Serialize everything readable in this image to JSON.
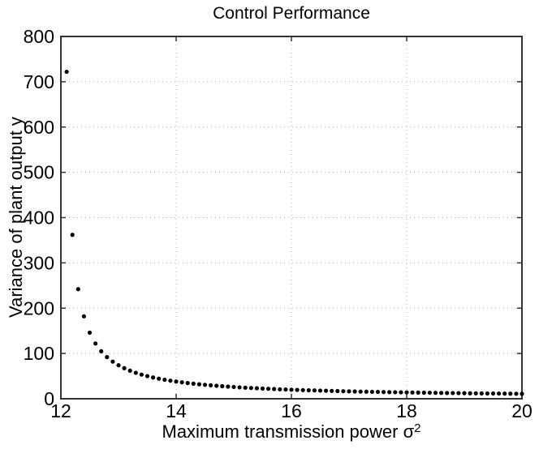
{
  "chart_data": {
    "type": "scatter",
    "title": "Control Performance",
    "xlabel_base": "Maximum transmission power σ",
    "xlabel_exponent": "2",
    "ylabel": "Variance of plant output y",
    "xlim": [
      12,
      20
    ],
    "ylim": [
      0,
      800
    ],
    "xticks": [
      12,
      14,
      16,
      18,
      20
    ],
    "yticks": [
      0,
      100,
      200,
      300,
      400,
      500,
      600,
      700,
      800
    ],
    "grid": true,
    "legend": "none",
    "marker": "dot",
    "marker_color": "#000000",
    "axis_color": "#333333",
    "grid_color": "#b0b0b0",
    "background": "#ffffff",
    "x": [
      12.1,
      12.2,
      12.3,
      12.4,
      12.5,
      12.6,
      12.7,
      12.8,
      12.9,
      13.0,
      13.1,
      13.2,
      13.3,
      13.4,
      13.5,
      13.6,
      13.7,
      13.8,
      13.9,
      14.0,
      14.1,
      14.2,
      14.3,
      14.4,
      14.5,
      14.6,
      14.7,
      14.8,
      14.9,
      15.0,
      15.1,
      15.2,
      15.3,
      15.4,
      15.5,
      15.6,
      15.7,
      15.8,
      15.9,
      16.0,
      16.1,
      16.2,
      16.3,
      16.4,
      16.5,
      16.6,
      16.7,
      16.8,
      16.9,
      17.0,
      17.1,
      17.2,
      17.3,
      17.4,
      17.5,
      17.6,
      17.7,
      17.8,
      17.9,
      18.0,
      18.1,
      18.2,
      18.3,
      18.4,
      18.5,
      18.6,
      18.7,
      18.8,
      18.9,
      19.0,
      19.1,
      19.2,
      19.3,
      19.4,
      19.5,
      19.6,
      19.7,
      19.8,
      19.9,
      20.0
    ],
    "y": [
      722.0,
      362.0,
      242.0,
      182.0,
      146.0,
      122.0,
      104.9,
      92.0,
      82.0,
      74.0,
      67.5,
      62.0,
      57.4,
      53.4,
      50.0,
      47.0,
      44.4,
      42.0,
      39.9,
      38.0,
      36.3,
      34.7,
      33.3,
      32.0,
      30.8,
      29.7,
      28.7,
      27.7,
      26.8,
      26.0,
      25.2,
      24.5,
      23.8,
      23.2,
      22.6,
      22.0,
      21.5,
      20.9,
      20.5,
      20.0,
      19.6,
      19.1,
      18.7,
      18.4,
      18.0,
      17.7,
      17.3,
      17.0,
      16.7,
      16.4,
      16.1,
      15.8,
      15.6,
      15.3,
      15.1,
      14.9,
      14.6,
      14.4,
      14.2,
      14.0,
      13.8,
      13.6,
      13.4,
      13.3,
      13.1,
      12.9,
      12.7,
      12.6,
      12.4,
      12.3,
      12.1,
      12.0,
      11.9,
      11.7,
      11.6,
      11.5,
      11.4,
      11.2,
      11.1,
      11.0
    ]
  }
}
